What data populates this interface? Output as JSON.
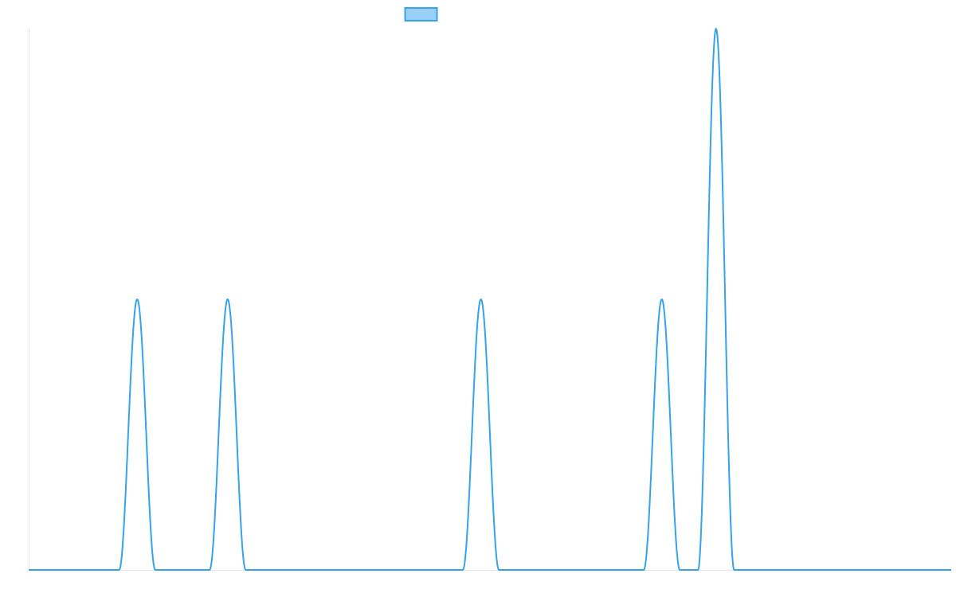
{
  "chart_data": {
    "type": "line",
    "title": "",
    "xlabel": "",
    "ylabel": "",
    "legend": {
      "placement": "top-center",
      "entries": [
        {
          "name": "",
          "swatch_fill": "#9ad0f5",
          "swatch_border": "#36a2eb"
        }
      ]
    },
    "grid": false,
    "axes_visible": false,
    "xlim": [
      0,
      1020
    ],
    "ylim": [
      0,
      1.0
    ],
    "series": [
      {
        "name": "",
        "color": "#36a2eb",
        "peaks": [
          {
            "center": 120,
            "height": 0.5,
            "half_width": 20
          },
          {
            "center": 220,
            "height": 0.5,
            "half_width": 20
          },
          {
            "center": 500,
            "height": 0.5,
            "half_width": 20
          },
          {
            "center": 700,
            "height": 0.5,
            "half_width": 20
          },
          {
            "center": 760,
            "height": 1.0,
            "half_width": 20
          }
        ]
      }
    ]
  }
}
